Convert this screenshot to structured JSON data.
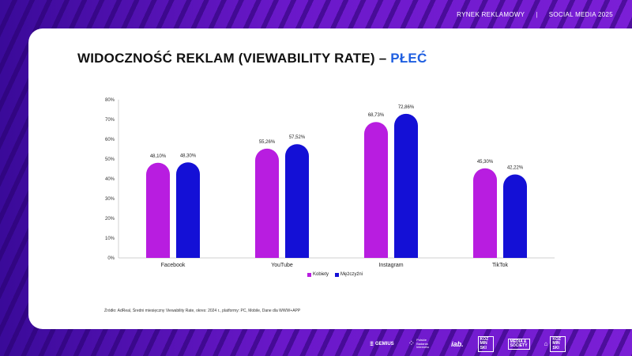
{
  "header": {
    "left": "RYNEK REKLAMOWY",
    "separator": "|",
    "right": "SOCIAL MEDIA 2025"
  },
  "title": {
    "main": "WIDOCZNOŚĆ REKLAM (VIEWABILITY RATE) –",
    "accent": "PŁEĆ"
  },
  "colors": {
    "accent": "#1f5fe0",
    "series_1": "#b81de0",
    "series_2": "#1410d6",
    "background": "#5b12b8"
  },
  "chart_data": {
    "type": "bar",
    "categories": [
      "Facebook",
      "YouTube",
      "Instagram",
      "TikTok"
    ],
    "series": [
      {
        "name": "Kobiety",
        "values": [
          48.1,
          55.26,
          68.73,
          45.3
        ],
        "labels": [
          "48,10%",
          "55,26%",
          "68,73%",
          "45,30%"
        ]
      },
      {
        "name": "Mężczyźni",
        "values": [
          48.3,
          57.52,
          72.86,
          42.22
        ],
        "labels": [
          "48,30%",
          "57,52%",
          "72,86%",
          "42,22%"
        ]
      }
    ],
    "ylim": [
      0,
      80
    ],
    "yticks": [
      "0%",
      "10%",
      "20%",
      "30%",
      "40%",
      "50%",
      "60%",
      "70%",
      "80%"
    ],
    "grid": false,
    "legend": "bottom"
  },
  "source": "Źródło: AdReal, Średni miesięczny Viewability Rate, okres: 2024 r., platformy: PC, Mobile, Dane dla WWW+APP",
  "footer": {
    "logo_gemius": "GEMIUS",
    "logo_pbi": "Polskie Badania Internetu",
    "logo_iab": "iab.",
    "logo_kozminski_1": "KOZ MIN SKI",
    "logo_media_society": "MEDIA & SOCIETY",
    "logo_kozminski_2": "KOZ MIN SKI"
  }
}
